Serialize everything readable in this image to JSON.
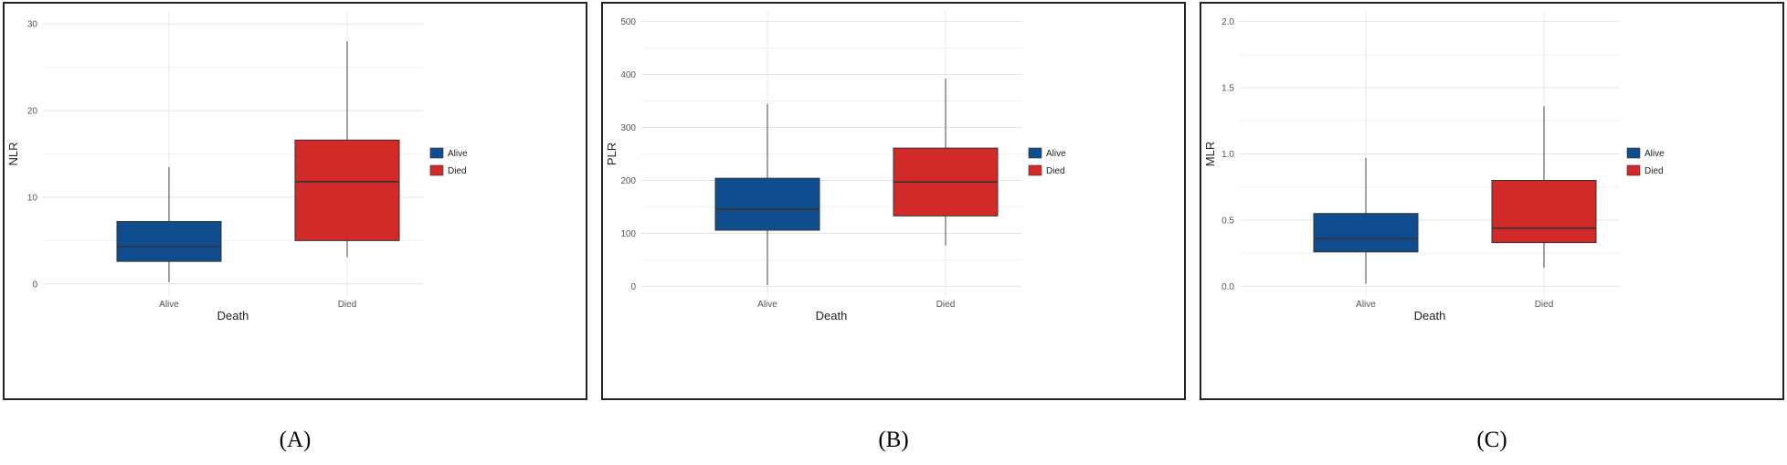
{
  "chart_data": [
    {
      "type": "box",
      "xlabel": "Death",
      "ylabel": "NLR",
      "ylim": [
        -1.5,
        31.5
      ],
      "yticks": [
        "0",
        "10",
        "20",
        "30"
      ],
      "ytick_values": [
        0,
        10,
        20,
        30
      ],
      "grid": true,
      "legend_position": "right",
      "categories": [
        "Alive",
        "Died"
      ],
      "boxes": [
        {
          "name": "Alive",
          "color": "#0f4d8f",
          "whisker_low": 0.2,
          "q1": 2.6,
          "median": 4.3,
          "q3": 7.2,
          "whisker_high": 13.5
        },
        {
          "name": "Died",
          "color": "#d12a28",
          "whisker_low": 3.1,
          "q1": 5.0,
          "median": 11.8,
          "q3": 16.6,
          "whisker_high": 28.0
        }
      ]
    },
    {
      "type": "box",
      "xlabel": "Death",
      "ylabel": "PLR",
      "ylim": [
        -20,
        520
      ],
      "yticks": [
        "0",
        "100",
        "200",
        "300",
        "400",
        "500"
      ],
      "ytick_values": [
        0,
        100,
        200,
        300,
        400,
        500
      ],
      "grid": true,
      "legend_position": "right",
      "categories": [
        "Alive",
        "Died"
      ],
      "boxes": [
        {
          "name": "Alive",
          "color": "#0f4d8f",
          "whisker_low": 2,
          "q1": 106,
          "median": 146,
          "q3": 204,
          "whisker_high": 344
        },
        {
          "name": "Died",
          "color": "#d12a28",
          "whisker_low": 77,
          "q1": 133,
          "median": 197,
          "q3": 261,
          "whisker_high": 392
        }
      ]
    },
    {
      "type": "box",
      "xlabel": "Death",
      "ylabel": "MLR",
      "ylim": [
        -0.08,
        2.08
      ],
      "yticks": [
        "0.0",
        "0.5",
        "1.0",
        "1.5",
        "2.0"
      ],
      "ytick_values": [
        0,
        0.5,
        1.0,
        1.5,
        2.0
      ],
      "grid": true,
      "legend_position": "right",
      "categories": [
        "Alive",
        "Died"
      ],
      "boxes": [
        {
          "name": "Alive",
          "color": "#0f4d8f",
          "whisker_low": 0.02,
          "q1": 0.26,
          "median": 0.36,
          "q3": 0.55,
          "whisker_high": 0.97
        },
        {
          "name": "Died",
          "color": "#d12a28",
          "whisker_low": 0.14,
          "q1": 0.33,
          "median": 0.44,
          "q3": 0.8,
          "whisker_high": 1.36
        }
      ]
    }
  ],
  "legend": [
    {
      "label": "Alive",
      "color": "#0f4d8f"
    },
    {
      "label": "Died",
      "color": "#d12a28"
    }
  ],
  "captions": [
    "(A)",
    "(B)",
    "(C)"
  ]
}
